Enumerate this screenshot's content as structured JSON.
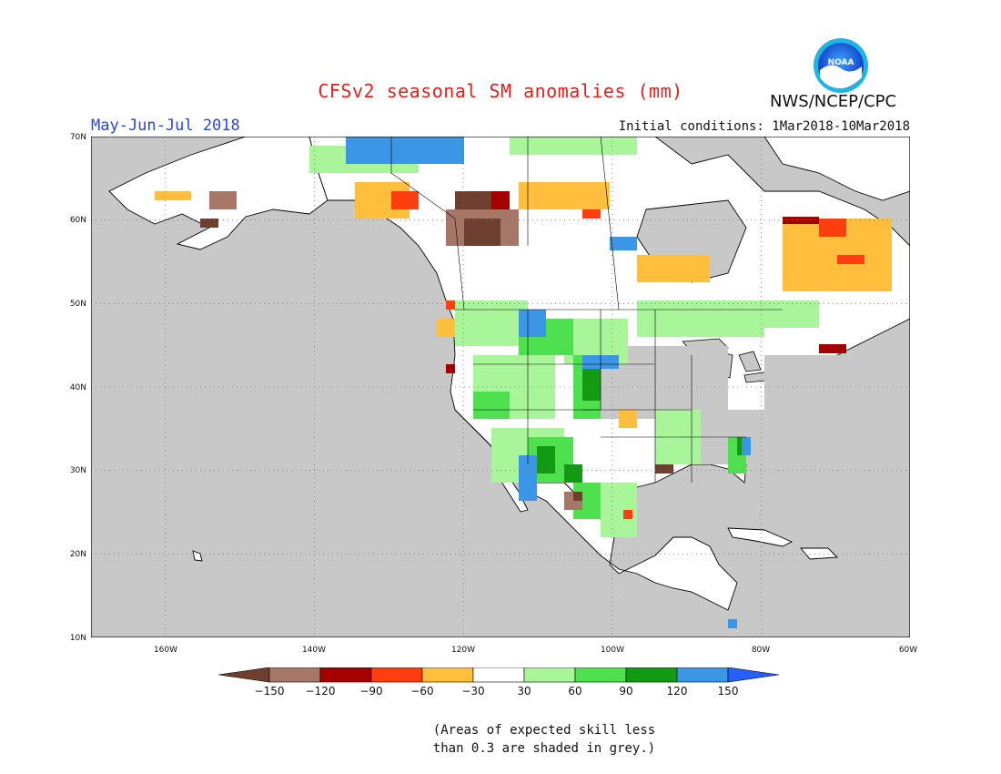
{
  "header": {
    "title": "CFSv2 seasonal SM anomalies (mm)",
    "season": "May-Jun-Jul 2018",
    "initial_conditions": "Initial conditions: 1Mar2018-10Mar2018",
    "agency": "NWS/NCEP/CPC",
    "logo_text": "NOAA"
  },
  "map": {
    "projection": "lat-lon",
    "lon_range": [
      -170,
      -60
    ],
    "lat_range": [
      10,
      70
    ],
    "lat_labels": [
      "70N",
      "60N",
      "50N",
      "40N",
      "30N",
      "20N",
      "10N"
    ],
    "lon_labels": [
      "160W",
      "140W",
      "120W",
      "100W",
      "80W",
      "60W"
    ],
    "grid": "dotted",
    "colors": {
      "ocean": "#c8c8c8",
      "land": "#ffffff",
      "low_skill": "#c8c8c8",
      "coast": "#000000"
    }
  },
  "legend": {
    "colors": [
      "#6e3f2e",
      "#a67766",
      "#a50000",
      "#ff3e10",
      "#ffbf3c",
      "#ffffff",
      "#a8f59a",
      "#4fe04f",
      "#129b12",
      "#3c96e6",
      "#2560ff"
    ],
    "labels": [
      "−150",
      "−120",
      "−90",
      "−60",
      "−30",
      "30",
      "60",
      "90",
      "120",
      "150"
    ]
  },
  "note": {
    "line1": "(Areas of expected skill less",
    "line2": "than 0.3 are shaded in grey.)"
  }
}
